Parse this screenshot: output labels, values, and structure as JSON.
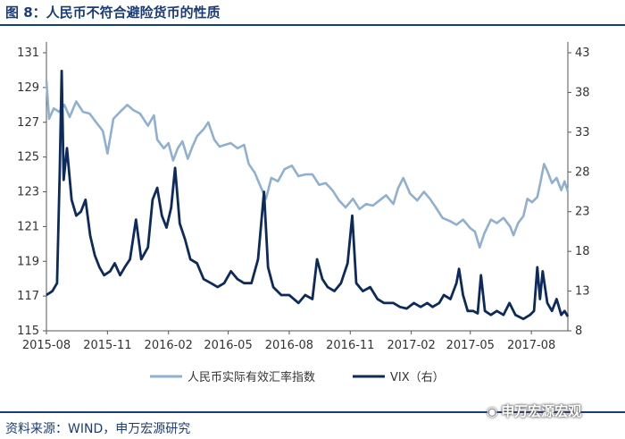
{
  "header": {
    "title": "图 8：人民币不符合避险货币的性质"
  },
  "footer": {
    "source": "资料来源：WIND，申万宏源研究",
    "watermark": "申万宏源宏观",
    "watermark_icon": "wechat-icon"
  },
  "chart_data": {
    "type": "line",
    "x_tick_labels": [
      "2015-08",
      "2015-11",
      "2016-02",
      "2016-05",
      "2016-08",
      "2016-11",
      "2017-02",
      "2017-05",
      "2017-08"
    ],
    "x_range": [
      "2015-08",
      "2017-09-25"
    ],
    "y_left": {
      "min": 115,
      "max": 131,
      "ticks": [
        115,
        117,
        119,
        121,
        123,
        125,
        127,
        129,
        131
      ]
    },
    "y_right": {
      "min": 8,
      "max": 43,
      "ticks": [
        8,
        13,
        18,
        23,
        28,
        33,
        38,
        43
      ]
    },
    "grid": false,
    "legend_position": "bottom",
    "colors": {
      "rmb": "#8fb0d0",
      "vix": "#0d2a5c"
    },
    "series": [
      {
        "name": "人民币实际有效汇率指数",
        "axis": "left",
        "points": [
          [
            "2015-08-01",
            129.4
          ],
          [
            "2015-08-05",
            127.2
          ],
          [
            "2015-08-12",
            127.8
          ],
          [
            "2015-08-20",
            127.6
          ],
          [
            "2015-08-28",
            128.0
          ],
          [
            "2015-09-05",
            127.3
          ],
          [
            "2015-09-15",
            128.2
          ],
          [
            "2015-09-25",
            127.6
          ],
          [
            "2015-10-05",
            127.5
          ],
          [
            "2015-10-15",
            127.0
          ],
          [
            "2015-10-25",
            126.5
          ],
          [
            "2015-11-01",
            125.2
          ],
          [
            "2015-11-10",
            127.2
          ],
          [
            "2015-11-20",
            127.6
          ],
          [
            "2015-12-01",
            128.0
          ],
          [
            "2015-12-10",
            127.7
          ],
          [
            "2015-12-20",
            127.5
          ],
          [
            "2016-01-01",
            126.8
          ],
          [
            "2016-01-10",
            127.4
          ],
          [
            "2016-01-15",
            126.0
          ],
          [
            "2016-01-25",
            125.5
          ],
          [
            "2016-02-01",
            125.8
          ],
          [
            "2016-02-08",
            124.8
          ],
          [
            "2016-02-15",
            125.5
          ],
          [
            "2016-02-22",
            125.9
          ],
          [
            "2016-03-01",
            124.9
          ],
          [
            "2016-03-08",
            125.6
          ],
          [
            "2016-03-15",
            126.2
          ],
          [
            "2016-03-25",
            126.6
          ],
          [
            "2016-04-01",
            127.0
          ],
          [
            "2016-04-10",
            126.0
          ],
          [
            "2016-04-18",
            125.6
          ],
          [
            "2016-04-26",
            125.7
          ],
          [
            "2016-05-05",
            125.8
          ],
          [
            "2016-05-15",
            125.5
          ],
          [
            "2016-05-25",
            125.7
          ],
          [
            "2016-06-01",
            124.6
          ],
          [
            "2016-06-10",
            124.1
          ],
          [
            "2016-06-20",
            123.2
          ],
          [
            "2016-06-27",
            122.6
          ],
          [
            "2016-07-05",
            123.8
          ],
          [
            "2016-07-15",
            123.6
          ],
          [
            "2016-07-25",
            124.3
          ],
          [
            "2016-08-05",
            124.5
          ],
          [
            "2016-08-15",
            123.9
          ],
          [
            "2016-08-25",
            124.0
          ],
          [
            "2016-09-05",
            124.0
          ],
          [
            "2016-09-15",
            123.4
          ],
          [
            "2016-09-25",
            123.5
          ],
          [
            "2016-10-05",
            123.1
          ],
          [
            "2016-10-15",
            122.5
          ],
          [
            "2016-10-25",
            122.1
          ],
          [
            "2016-11-05",
            122.6
          ],
          [
            "2016-11-15",
            122.0
          ],
          [
            "2016-11-25",
            122.3
          ],
          [
            "2016-12-05",
            122.2
          ],
          [
            "2016-12-15",
            122.5
          ],
          [
            "2016-12-25",
            122.8
          ],
          [
            "2017-01-05",
            122.3
          ],
          [
            "2017-01-12",
            123.2
          ],
          [
            "2017-01-20",
            123.8
          ],
          [
            "2017-01-30",
            122.9
          ],
          [
            "2017-02-10",
            122.5
          ],
          [
            "2017-02-20",
            123.0
          ],
          [
            "2017-03-01",
            122.6
          ],
          [
            "2017-03-10",
            122.1
          ],
          [
            "2017-03-20",
            121.5
          ],
          [
            "2017-04-01",
            121.3
          ],
          [
            "2017-04-10",
            121.1
          ],
          [
            "2017-04-20",
            121.4
          ],
          [
            "2017-05-01",
            120.9
          ],
          [
            "2017-05-08",
            120.7
          ],
          [
            "2017-05-15",
            119.8
          ],
          [
            "2017-05-22",
            120.6
          ],
          [
            "2017-06-01",
            121.4
          ],
          [
            "2017-06-10",
            121.2
          ],
          [
            "2017-06-20",
            121.5
          ],
          [
            "2017-06-30",
            121.0
          ],
          [
            "2017-07-05",
            120.5
          ],
          [
            "2017-07-12",
            121.2
          ],
          [
            "2017-07-20",
            121.6
          ],
          [
            "2017-07-26",
            122.6
          ],
          [
            "2017-08-02",
            122.4
          ],
          [
            "2017-08-10",
            122.7
          ],
          [
            "2017-08-15",
            123.6
          ],
          [
            "2017-08-20",
            124.6
          ],
          [
            "2017-08-25",
            124.2
          ],
          [
            "2017-09-01",
            123.5
          ],
          [
            "2017-09-08",
            123.8
          ],
          [
            "2017-09-15",
            123.1
          ],
          [
            "2017-09-20",
            123.6
          ],
          [
            "2017-09-25",
            123.0
          ]
        ]
      },
      {
        "name": "VIX（右）",
        "axis": "right",
        "points": [
          [
            "2015-08-01",
            12.5
          ],
          [
            "2015-08-10",
            13.0
          ],
          [
            "2015-08-17",
            14.0
          ],
          [
            "2015-08-21",
            28.0
          ],
          [
            "2015-08-24",
            40.7
          ],
          [
            "2015-08-27",
            27.0
          ],
          [
            "2015-09-01",
            31.0
          ],
          [
            "2015-09-08",
            24.5
          ],
          [
            "2015-09-15",
            22.5
          ],
          [
            "2015-09-22",
            23.0
          ],
          [
            "2015-09-29",
            24.5
          ],
          [
            "2015-10-06",
            20.0
          ],
          [
            "2015-10-13",
            17.5
          ],
          [
            "2015-10-20",
            16.0
          ],
          [
            "2015-10-27",
            15.0
          ],
          [
            "2015-11-05",
            15.5
          ],
          [
            "2015-11-12",
            16.5
          ],
          [
            "2015-11-20",
            15.0
          ],
          [
            "2015-11-27",
            16.0
          ],
          [
            "2015-12-05",
            17.0
          ],
          [
            "2015-12-14",
            22.0
          ],
          [
            "2015-12-22",
            17.0
          ],
          [
            "2016-01-01",
            18.5
          ],
          [
            "2016-01-08",
            24.5
          ],
          [
            "2016-01-15",
            26.0
          ],
          [
            "2016-01-22",
            22.5
          ],
          [
            "2016-01-29",
            21.0
          ],
          [
            "2016-02-05",
            23.5
          ],
          [
            "2016-02-11",
            28.5
          ],
          [
            "2016-02-18",
            21.5
          ],
          [
            "2016-02-26",
            19.5
          ],
          [
            "2016-03-05",
            17.0
          ],
          [
            "2016-03-15",
            16.5
          ],
          [
            "2016-03-25",
            14.5
          ],
          [
            "2016-04-05",
            14.0
          ],
          [
            "2016-04-15",
            13.5
          ],
          [
            "2016-04-25",
            14.0
          ],
          [
            "2016-05-05",
            15.5
          ],
          [
            "2016-05-15",
            14.5
          ],
          [
            "2016-05-25",
            14.0
          ],
          [
            "2016-06-05",
            14.0
          ],
          [
            "2016-06-15",
            17.0
          ],
          [
            "2016-06-24",
            25.5
          ],
          [
            "2016-06-30",
            16.0
          ],
          [
            "2016-07-08",
            13.5
          ],
          [
            "2016-07-20",
            12.5
          ],
          [
            "2016-08-01",
            12.5
          ],
          [
            "2016-08-15",
            11.5
          ],
          [
            "2016-08-25",
            12.5
          ],
          [
            "2016-09-05",
            12.0
          ],
          [
            "2016-09-12",
            17.0
          ],
          [
            "2016-09-20",
            14.5
          ],
          [
            "2016-09-28",
            13.5
          ],
          [
            "2016-10-08",
            13.0
          ],
          [
            "2016-10-18",
            14.0
          ],
          [
            "2016-10-28",
            16.5
          ],
          [
            "2016-11-04",
            22.5
          ],
          [
            "2016-11-10",
            14.0
          ],
          [
            "2016-11-20",
            13.0
          ],
          [
            "2016-12-01",
            13.5
          ],
          [
            "2016-12-12",
            12.0
          ],
          [
            "2016-12-22",
            11.5
          ],
          [
            "2017-01-05",
            11.5
          ],
          [
            "2017-01-15",
            11.0
          ],
          [
            "2017-01-25",
            10.8
          ],
          [
            "2017-02-05",
            11.5
          ],
          [
            "2017-02-15",
            11.0
          ],
          [
            "2017-02-25",
            11.5
          ],
          [
            "2017-03-05",
            11.0
          ],
          [
            "2017-03-15",
            11.5
          ],
          [
            "2017-03-22",
            12.5
          ],
          [
            "2017-04-01",
            12.0
          ],
          [
            "2017-04-10",
            14.0
          ],
          [
            "2017-04-14",
            15.8
          ],
          [
            "2017-04-20",
            12.5
          ],
          [
            "2017-04-27",
            10.5
          ],
          [
            "2017-05-05",
            10.5
          ],
          [
            "2017-05-12",
            10.2
          ],
          [
            "2017-05-17",
            15.0
          ],
          [
            "2017-05-23",
            10.5
          ],
          [
            "2017-06-01",
            10.0
          ],
          [
            "2017-06-10",
            10.5
          ],
          [
            "2017-06-20",
            10.0
          ],
          [
            "2017-06-29",
            11.5
          ],
          [
            "2017-07-08",
            10.0
          ],
          [
            "2017-07-20",
            9.5
          ],
          [
            "2017-07-30",
            10.0
          ],
          [
            "2017-08-05",
            10.5
          ],
          [
            "2017-08-10",
            16.0
          ],
          [
            "2017-08-14",
            12.0
          ],
          [
            "2017-08-18",
            15.5
          ],
          [
            "2017-08-25",
            11.5
          ],
          [
            "2017-09-01",
            10.5
          ],
          [
            "2017-09-08",
            12.0
          ],
          [
            "2017-09-15",
            10.0
          ],
          [
            "2017-09-20",
            10.5
          ],
          [
            "2017-09-25",
            9.8
          ]
        ]
      }
    ]
  }
}
